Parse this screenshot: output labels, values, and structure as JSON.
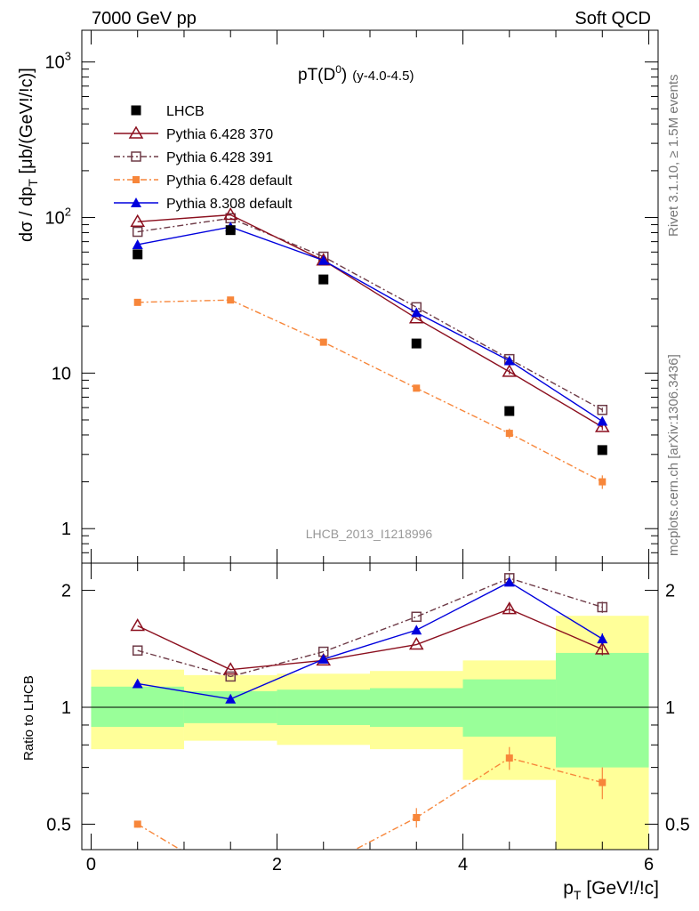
{
  "header": {
    "left": "7000 GeV pp",
    "right": "Soft QCD"
  },
  "side_text": {
    "top": "Rivet 3.1.10, ≥ 1.5M events",
    "bottom": "mcplots.cern.ch [arXiv:1306.3436]"
  },
  "colors": {
    "lhcb": "#000000",
    "p370": "#8b0f1e",
    "p391": "#6e3b47",
    "p6def": "#f7863a",
    "p8def": "#0000dd",
    "band_inner": "#99ff99",
    "band_outer": "#ffff99"
  },
  "chart_data": [
    {
      "type": "line",
      "title": "pT(D0) (y-4.0-4.5)",
      "title_parts": {
        "main": "pT(D",
        "sup": "0",
        "close": ")",
        "sub": "(y-4.0-4.5)"
      },
      "ylabel": "dσ / dp_T [μb/(GeV!/!c)]",
      "ylabel_parts": {
        "a": "dσ / dp",
        "sub": "T",
        "b": " [μb/(GeV!/!c)]"
      },
      "yscale": "log",
      "ylim": [
        0.6,
        1600
      ],
      "xlim": [
        -0.1,
        6.1
      ],
      "yticks": [
        1,
        10,
        100,
        1000
      ],
      "ytick_labels": {
        "base": [
          "1",
          "10",
          "10",
          "10"
        ],
        "exp": [
          "",
          "",
          "2",
          "3"
        ]
      },
      "watermark": "LHCB_2013_I1218996",
      "legend_position": "top-left",
      "x": [
        0.5,
        1.5,
        2.5,
        3.5,
        4.5,
        5.5
      ],
      "series": [
        {
          "name": "LHCB",
          "key": "lhcb",
          "values": [
            58,
            83,
            40,
            15.5,
            5.7,
            3.2
          ]
        },
        {
          "name": "Pythia 6.428 370",
          "key": "p370",
          "values": [
            94,
            104,
            53,
            22.5,
            10.2,
            4.5
          ],
          "errors": [
            0,
            0,
            0,
            0,
            0.4,
            0.2
          ]
        },
        {
          "name": "Pythia 6.428 391",
          "key": "p391",
          "values": [
            81,
            99,
            56,
            26.5,
            12.3,
            5.8
          ],
          "errors": [
            0,
            0,
            0,
            0,
            0.4,
            0.2
          ]
        },
        {
          "name": "Pythia 6.428 default",
          "key": "p6def",
          "values": [
            28.5,
            29.5,
            15.8,
            8.0,
            4.1,
            2.0
          ],
          "errors": [
            0.5,
            0.5,
            0.3,
            0.2,
            0.3,
            0.2
          ]
        },
        {
          "name": "Pythia 8.308 default",
          "key": "p8def",
          "values": [
            67,
            87,
            53,
            24.5,
            12.0,
            4.9
          ],
          "errors": [
            0,
            0,
            0,
            0,
            0.3,
            0.2
          ]
        }
      ]
    },
    {
      "type": "line",
      "ylabel": "Ratio to LHCB",
      "xlabel": "p_T [GeV!/!c]",
      "xlabel_parts": {
        "a": "p",
        "sub": "T",
        "b": " [GeV!/!c]"
      },
      "yscale": "log",
      "ylim": [
        0.43,
        2.35
      ],
      "xlim": [
        -0.1,
        6.1
      ],
      "xticks": [
        0,
        2,
        4,
        6
      ],
      "xtick_labels": [
        "0",
        "2",
        "4",
        "6"
      ],
      "yticks": [
        0.5,
        1,
        2
      ],
      "ytick_labels": [
        "0.5",
        "1",
        "2"
      ],
      "bins": [
        [
          0,
          1
        ],
        [
          1,
          2
        ],
        [
          2,
          3
        ],
        [
          3,
          4
        ],
        [
          4,
          5
        ],
        [
          5,
          6
        ]
      ],
      "band_inner": [
        [
          0.89,
          1.13
        ],
        [
          0.91,
          1.1
        ],
        [
          0.9,
          1.11
        ],
        [
          0.89,
          1.12
        ],
        [
          0.84,
          1.18
        ],
        [
          0.7,
          1.38
        ]
      ],
      "band_outer": [
        [
          0.78,
          1.25
        ],
        [
          0.82,
          1.21
        ],
        [
          0.8,
          1.22
        ],
        [
          0.78,
          1.24
        ],
        [
          0.65,
          1.32
        ],
        [
          0.4,
          1.72
        ]
      ],
      "x": [
        0.5,
        1.5,
        2.5,
        3.5,
        4.5,
        5.5
      ],
      "series": [
        {
          "name": "Pythia 6.428 370",
          "key": "p370",
          "values": [
            1.62,
            1.25,
            1.32,
            1.45,
            1.79,
            1.41
          ],
          "errors": [
            0,
            0,
            0,
            0,
            0.05,
            0.05
          ]
        },
        {
          "name": "Pythia 6.428 391",
          "key": "p391",
          "values": [
            1.4,
            1.2,
            1.39,
            1.71,
            2.15,
            1.81
          ],
          "errors": [
            0,
            0,
            0,
            0,
            0.05,
            0.06
          ]
        },
        {
          "name": "Pythia 6.428 default",
          "key": "p6def",
          "values": [
            0.5,
            0.36,
            0.39,
            0.52,
            0.74,
            0.64
          ],
          "errors": [
            0.01,
            0.01,
            0.01,
            0.03,
            0.05,
            0.06
          ]
        },
        {
          "name": "Pythia 8.308 default",
          "key": "p8def",
          "values": [
            1.15,
            1.05,
            1.33,
            1.58,
            2.1,
            1.5
          ],
          "errors": [
            0,
            0,
            0,
            0,
            0.04,
            0.05
          ]
        }
      ]
    }
  ]
}
